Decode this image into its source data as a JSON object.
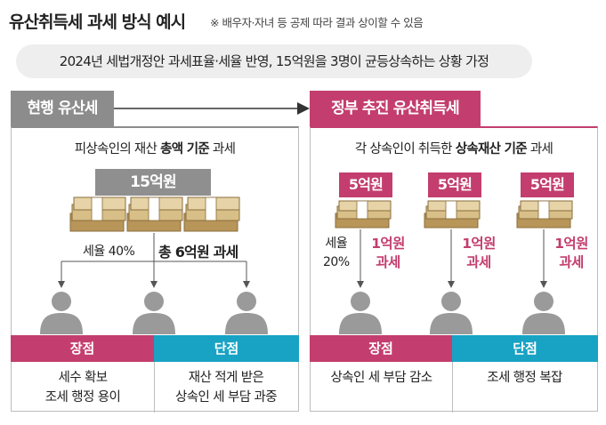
{
  "header": {
    "title": "유산취득세 과세 방식 예시",
    "note": "※ 배우자·자녀 등 공제 따라 결과 상이할 수 있음"
  },
  "premise": "2024년 세법개정안 과세표율·세율 반영, 15억원을 3명이 균등상속하는 상황 가정",
  "current": {
    "heading": "현행 유산세",
    "subtitle_pre": "피상속인의 재산 ",
    "subtitle_bold": "총액 기준",
    "subtitle_post": " 과세",
    "amount": "15억원",
    "rate": "세율 40%",
    "tax": "총 6억원 과세",
    "pro_label": "장점",
    "con_label": "단점",
    "pro_lines": [
      "세수 확보",
      "조세 행정 용이"
    ],
    "con_lines": [
      "재산 적게 받은",
      "상속인 세 부담 과중"
    ]
  },
  "proposed": {
    "heading": "정부 추진 유산취득세",
    "subtitle_pre": "각 상속인이 취득한 ",
    "subtitle_bold": "상속재산 기준",
    "subtitle_post": " 과세",
    "share": "5억원",
    "rate_line1": "세율",
    "rate_line2": "20%",
    "tax_line1": "1억원",
    "tax_line2": "과세",
    "pro_label": "장점",
    "con_label": "단점",
    "pro_lines": [
      "상속인 세 부담 감소"
    ],
    "con_lines": [
      "조세 행정 복잡"
    ]
  },
  "colors": {
    "pink": "#c33e6e",
    "cyan": "#18a3c4",
    "gray": "#8c8c8c",
    "money": "#c8a86a"
  }
}
